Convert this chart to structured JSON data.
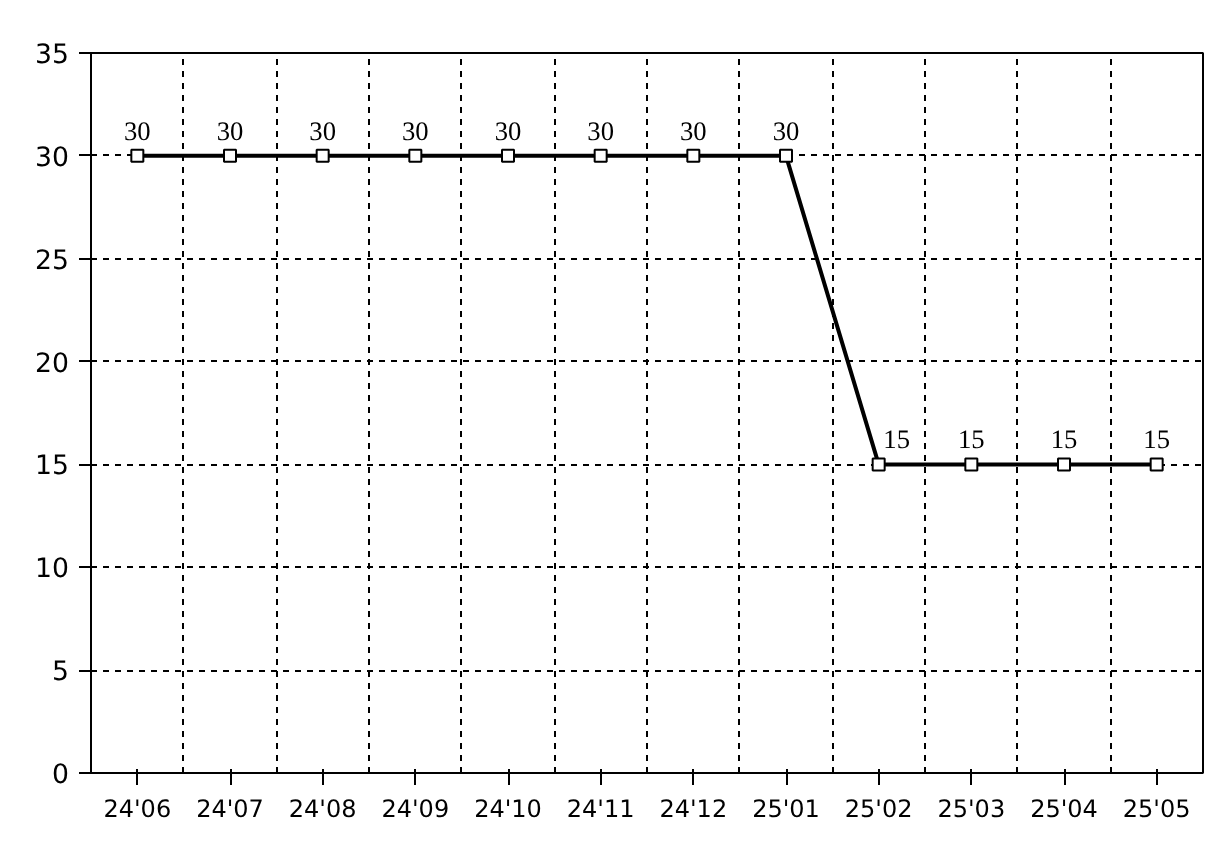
{
  "chart_data": {
    "type": "line",
    "categories": [
      "24'06",
      "24'07",
      "24'08",
      "24'09",
      "24'10",
      "24'11",
      "24'12",
      "25'01",
      "25'02",
      "25'03",
      "25'04",
      "25'05"
    ],
    "series": [
      {
        "color": "#000000",
        "values": [
          30,
          30,
          30,
          30,
          30,
          30,
          30,
          30,
          15,
          15,
          15,
          15
        ]
      }
    ],
    "ylim": [
      0,
      35
    ],
    "yticks": [
      0,
      5,
      10,
      15,
      20,
      25,
      30,
      35
    ],
    "grid": true,
    "marker": "square",
    "line_style": "solid",
    "data_labels": true
  }
}
